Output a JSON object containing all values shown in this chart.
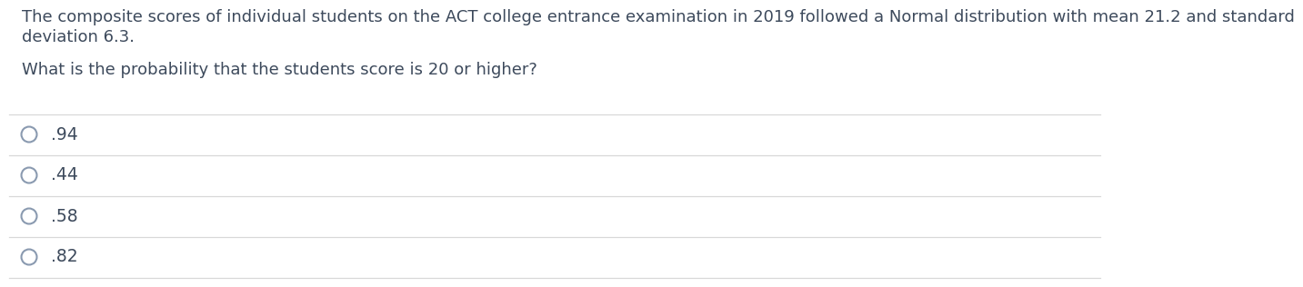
{
  "line1": "The composite scores of individual students on the ACT college entrance examination in 2019 followed a Normal distribution with mean 21.2 and standard",
  "line2": "deviation 6.3.",
  "question": "What is the probability that the students score is 20 or higher?",
  "options": [
    ".94",
    ".44",
    ".58",
    ".82"
  ],
  "bg_color": "#ffffff",
  "text_color": "#3d4a5c",
  "line_color": "#d8d8d8",
  "font_size_paragraph": 13.0,
  "font_size_option": 13.5,
  "circle_color": "#8a9ab0"
}
